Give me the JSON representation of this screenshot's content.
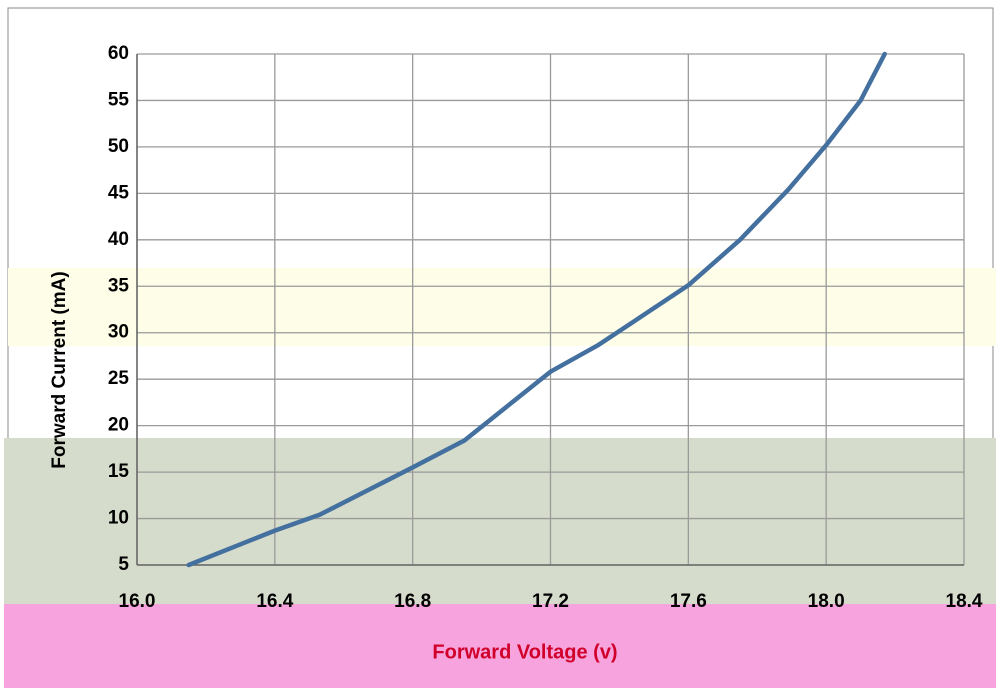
{
  "chart_data": {
    "type": "line",
    "x_label": "Forward Voltage (v)",
    "y_label": "Forward Current  (mA)",
    "x": [
      16.15,
      16.4,
      16.53,
      16.8,
      16.95,
      17.2,
      17.34,
      17.6,
      17.75,
      17.89,
      18.0,
      18.1,
      18.17
    ],
    "series": [
      {
        "color": "#44709f",
        "values": [
          5,
          8.7,
          10.4,
          15.5,
          18.4,
          25.8,
          28.7,
          35.1,
          40,
          45.4,
          50.2,
          55,
          60
        ]
      }
    ],
    "xlim": [
      16,
      18.4
    ],
    "xticks": [
      {
        "value": 16,
        "label": "16.0"
      },
      16.4,
      16.8,
      17.2,
      17.6,
      {
        "value": 18,
        "label": "18.0"
      },
      18.4
    ],
    "ylim": [
      5,
      60
    ],
    "yticks": [
      5,
      10,
      15,
      20,
      25,
      30,
      35,
      40,
      45,
      50,
      55,
      60
    ],
    "grid": true
  }
}
